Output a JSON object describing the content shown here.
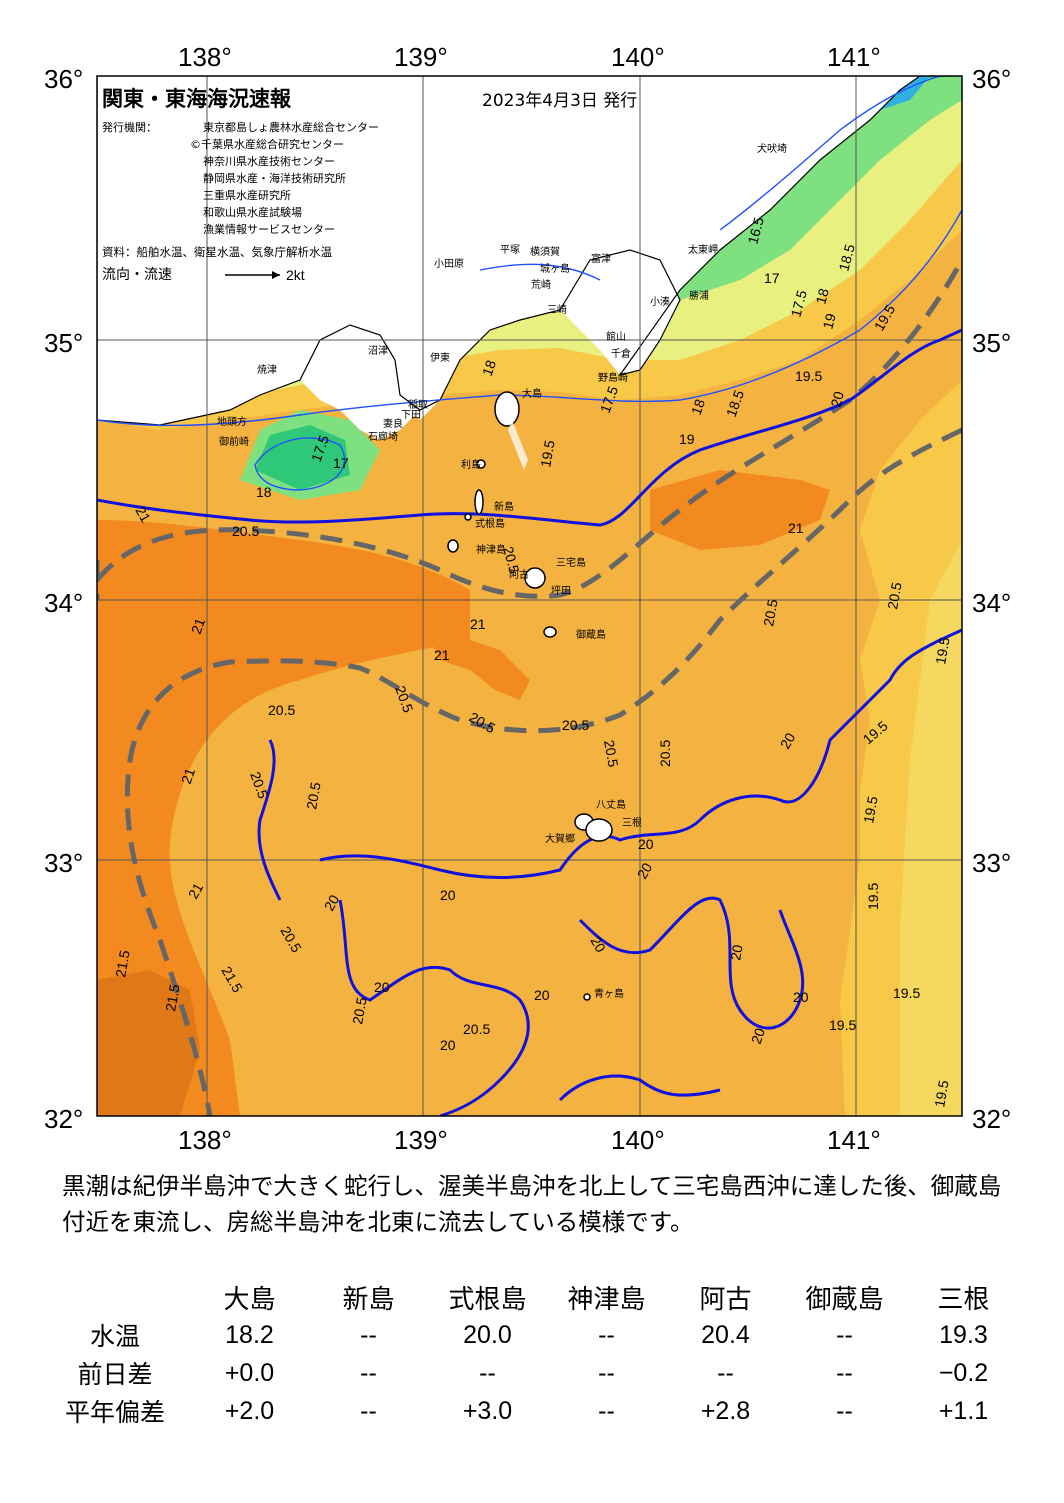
{
  "map": {
    "title": "関東・東海海況速報",
    "issue_date": "2023年4月3日 発行",
    "publisher_label": "発行機関：",
    "publishers": [
      "東京都島しょ農林水産総合センター",
      "©千葉県水産総合研究センター",
      "神奈川県水産技術センター",
      "静岡県水産・海洋技術研究所",
      "三重県水産研究所",
      "和歌山県水産試験場",
      "漁業情報サービスセンター"
    ],
    "sources": "資料：船舶水温、衛星水温、気象庁解析水温",
    "current_legend": "流向・流速",
    "current_scale": "2kt",
    "lon_ticks": [
      "138°",
      "139°",
      "140°",
      "141°"
    ],
    "lat_ticks": [
      "36°",
      "35°",
      "34°",
      "33°",
      "32°"
    ],
    "place_names": {
      "inubosaki": "犬吠埼",
      "taitomisaki": "太東岬",
      "katsuura": "勝浦",
      "kominato": "小湊",
      "odawara": "小田原",
      "hiratsuka": "平塚",
      "yokosuka": "横須賀",
      "futtsu": "富津",
      "jogashima": "城ヶ島",
      "araki": "荒崎",
      "misaki": "三崎",
      "tateyama": "館山",
      "chikura": "千倉",
      "nojimazaki": "野島崎",
      "numazu": "沼津",
      "yaizu": "焼津",
      "ito": "伊東",
      "inatori": "稲取",
      "shimoda": "下田",
      "mera": "妻良",
      "irozaki": "石廊埼",
      "jitokata": "地頭方",
      "omaezaki": "御前崎",
      "oshima": "大島",
      "toshima": "利島",
      "niijima": "新島",
      "shikinejima": "式根島",
      "kozushima": "神津島",
      "miyakejima": "三宅島",
      "ako": "阿古",
      "tsubota": "坪田",
      "mikurajima": "御蔵島",
      "hachijojima": "八丈島",
      "mitsune": "三根",
      "okago": "大賀郷",
      "aogashima": "青ヶ島"
    },
    "contour_labels": [
      "16.5",
      "17",
      "17.5",
      "18",
      "18.5",
      "19",
      "19.5",
      "17.5",
      "17",
      "18",
      "18",
      "17.5",
      "18",
      "18.5",
      "19",
      "19.5",
      "19.5",
      "20",
      "20",
      "20",
      "20",
      "20",
      "20",
      "20",
      "20",
      "20",
      "20",
      "20",
      "20",
      "20",
      "20",
      "20.5",
      "20.5",
      "20.5",
      "20.5",
      "20.5",
      "20.5",
      "20.5",
      "20.5",
      "20.5",
      "20.5",
      "20.5",
      "20.5",
      "20.5",
      "21",
      "21",
      "21",
      "21",
      "21",
      "21",
      "21",
      "21.5",
      "21.5",
      "21.5",
      "19.5",
      "19.5",
      "19.5",
      "19.5",
      "19.5",
      "19.5",
      "19.5",
      "19.5",
      "20.5",
      "20.5",
      "20.5"
    ],
    "colors": {
      "below_17": "#2ec878",
      "t17_18": "#7fe07f",
      "t18_19": "#e8f080",
      "t19_19_5": "#f5e060",
      "t19_5_20": "#f8c848",
      "t20_21": "#f4b240",
      "t21_plus": "#f28a20",
      "kuroshio_axis": "#666666",
      "contour_20": "#1010e0",
      "coast": "#000000"
    }
  },
  "description": "黒潮は紀伊半島沖で大きく蛇行し、渥美半島沖を北上して三宅島西沖に達した後、御蔵島付近を東流し、房総半島沖を北東に流去している模様です。",
  "table": {
    "columns": [
      "大島",
      "新島",
      "式根島",
      "神津島",
      "阿古",
      "御蔵島",
      "三根"
    ],
    "rows": [
      {
        "label": "水温",
        "values": [
          "18.2",
          "--",
          "20.0",
          "--",
          "20.4",
          "--",
          "19.3"
        ]
      },
      {
        "label": "前日差",
        "values": [
          "+0.0",
          "--",
          "--",
          "--",
          "--",
          "--",
          "−0.2"
        ]
      },
      {
        "label": "平年偏差",
        "values": [
          "+2.0",
          "--",
          "+3.0",
          "--",
          "+2.8",
          "--",
          "+1.1"
        ]
      }
    ]
  }
}
